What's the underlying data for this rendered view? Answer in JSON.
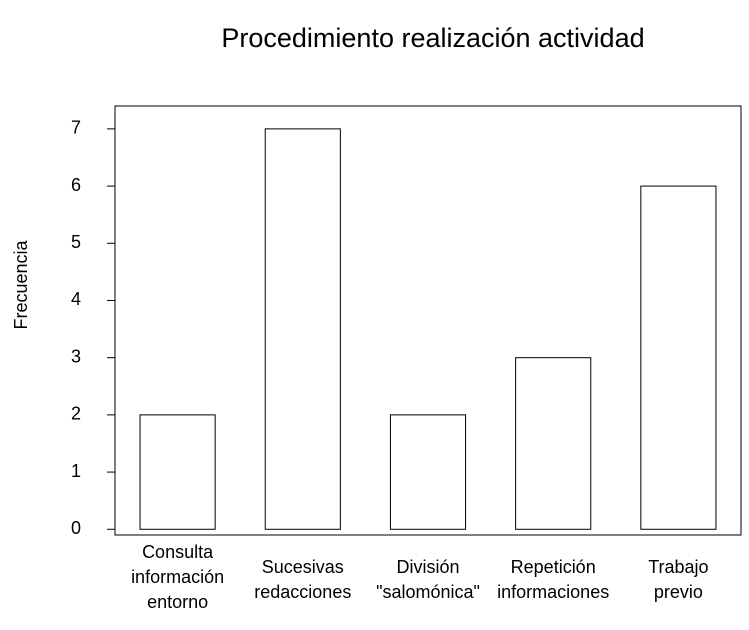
{
  "chart_data": {
    "type": "bar",
    "title": "Procedimiento realización actividad",
    "y_label": "Frecuencia",
    "categories": [
      [
        "Consulta",
        "información",
        "entorno"
      ],
      [
        "Sucesivas",
        "redacciones"
      ],
      [
        "División",
        "\"salomónica\""
      ],
      [
        "Repetición",
        "informaciones"
      ],
      [
        "Trabajo",
        "previo"
      ]
    ],
    "values": [
      2,
      7,
      2,
      3,
      6
    ],
    "color": "#ffffff",
    "ylim": [
      -0.1,
      7.4
    ],
    "yticks": [
      0,
      1,
      2,
      3,
      4,
      5,
      6,
      7
    ],
    "grid": false
  }
}
